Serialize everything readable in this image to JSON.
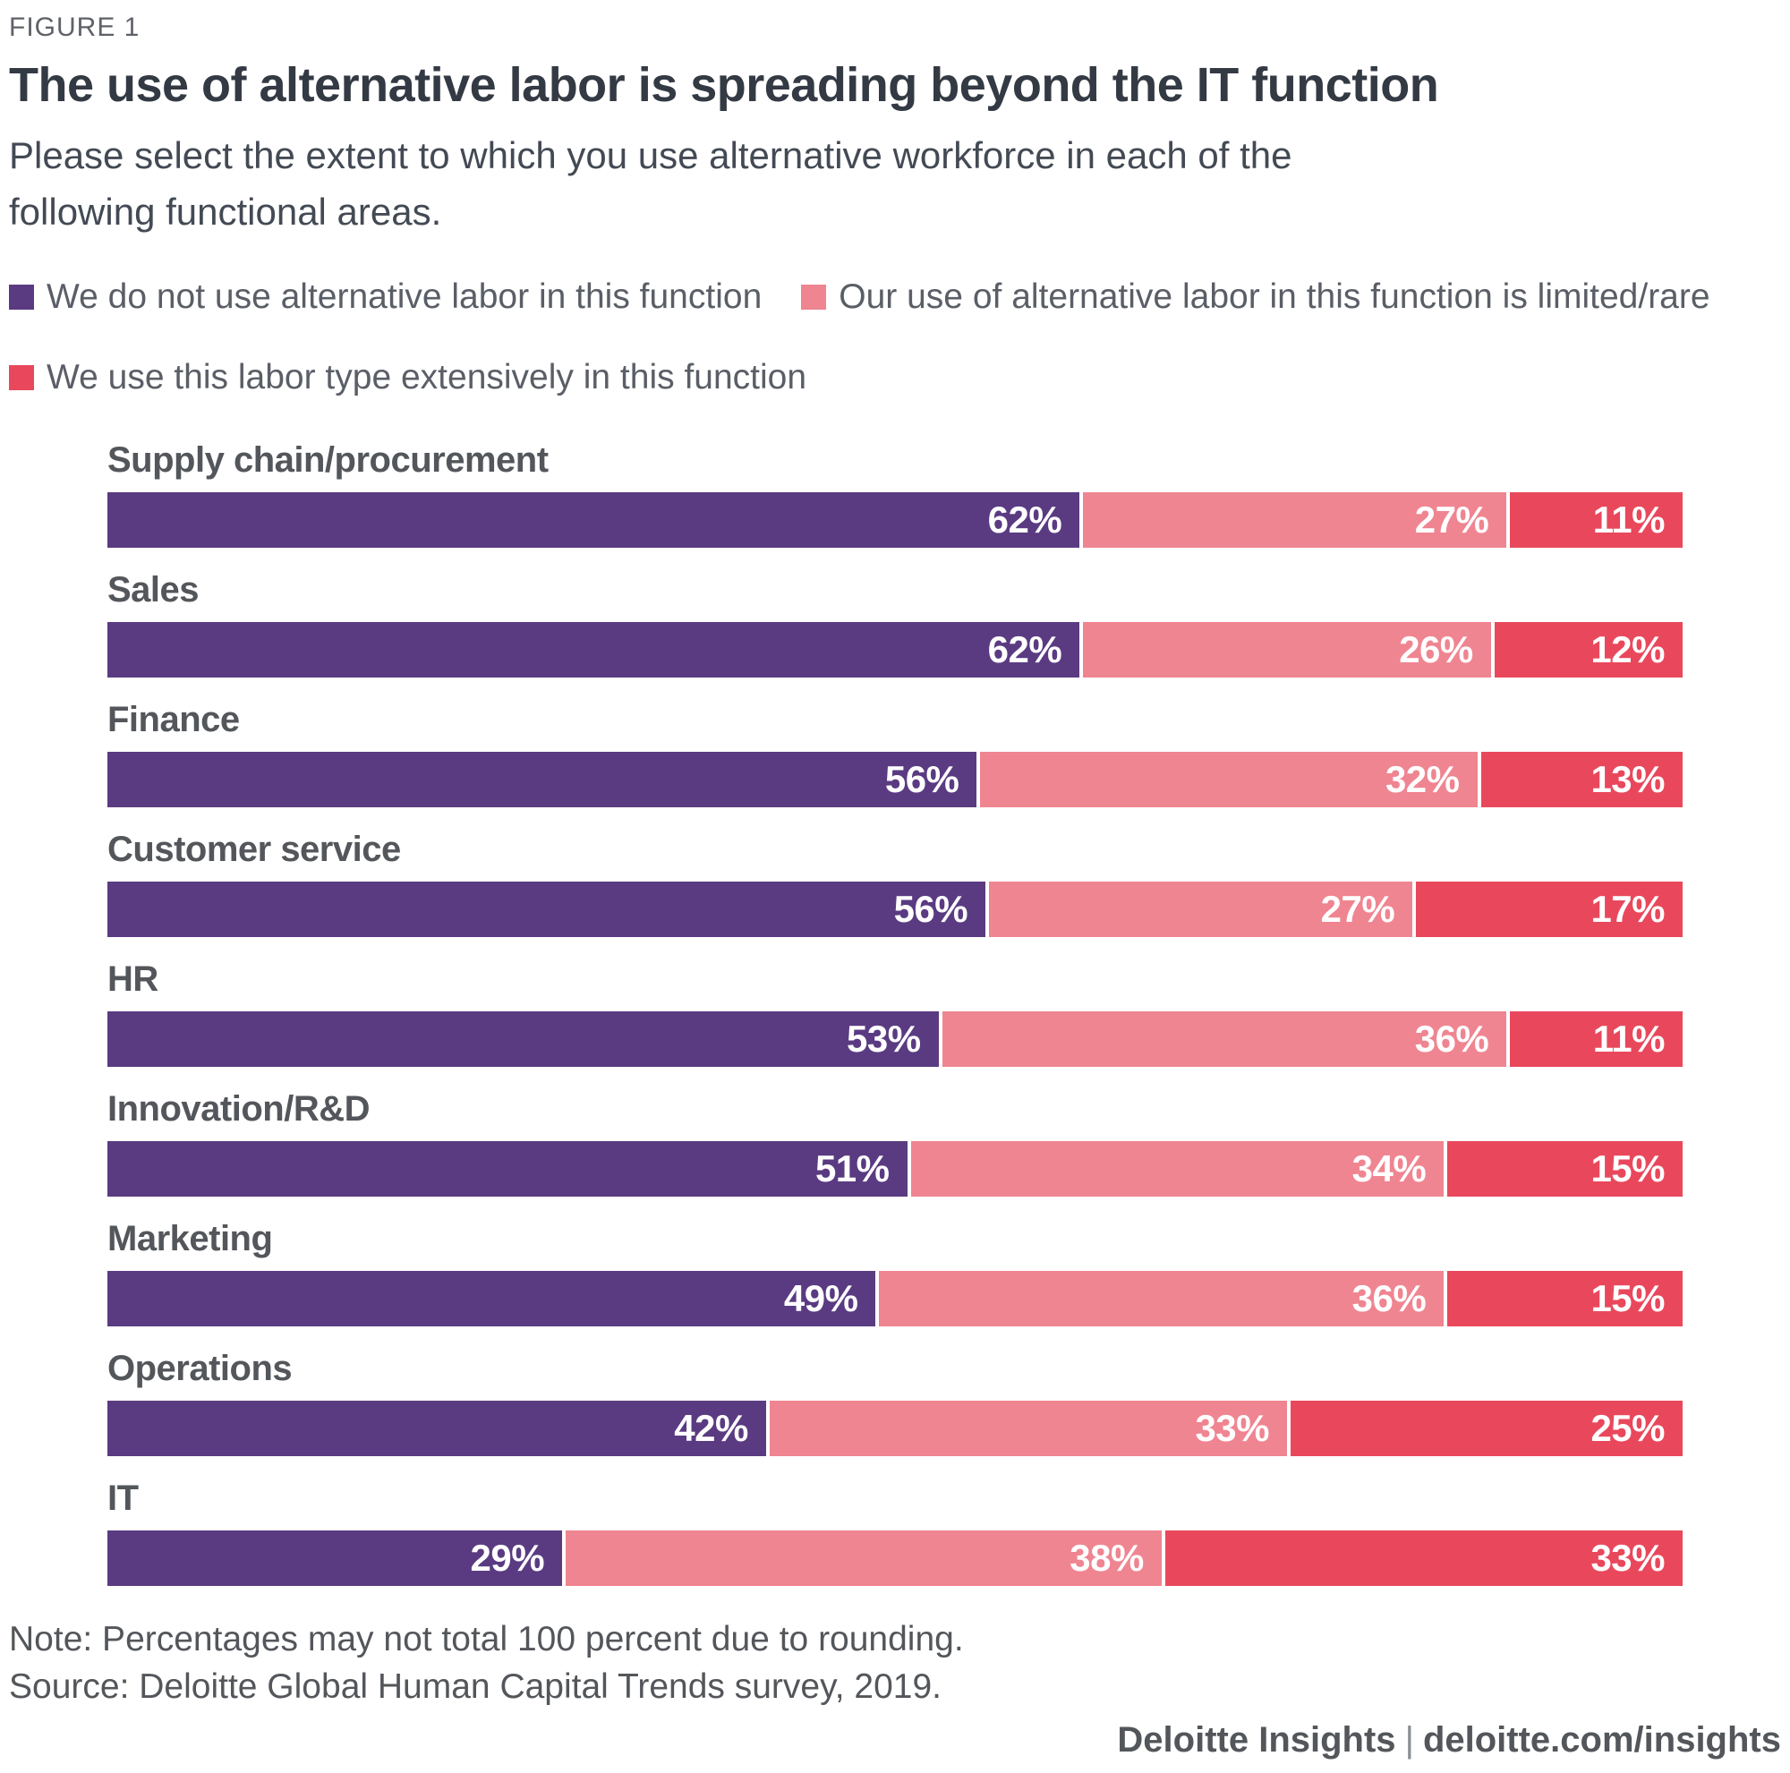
{
  "figure_label": "FIGURE 1",
  "title": "The use of alternative labor is spreading beyond the IT function",
  "subtitle": "Please select the extent to which you use alternative workforce in each of the following functional areas.",
  "colors": {
    "no_use": "#5A3B82",
    "limited": "#EF8591",
    "extensive": "#E9485C"
  },
  "legend": [
    {
      "label": "We do not use alternative labor in this function",
      "color": "#5A3B82"
    },
    {
      "label": "Our use of alternative labor in this function is limited/rare",
      "color": "#EF8591"
    },
    {
      "label": "We use this labor type extensively in this function",
      "color": "#E9485C"
    }
  ],
  "chart_data": {
    "type": "bar",
    "orientation": "horizontal",
    "stacked": true,
    "unit": "%",
    "categories": [
      "Supply chain/procurement",
      "Sales",
      "Finance",
      "Customer service",
      "HR",
      "Innovation/R&D",
      "Marketing",
      "Operations",
      "IT"
    ],
    "series": [
      {
        "name": "We do not use alternative labor in this function",
        "color": "#5A3B82",
        "values": [
          62,
          62,
          56,
          56,
          53,
          51,
          49,
          42,
          29
        ]
      },
      {
        "name": "Our use of alternative labor in this function is limited/rare",
        "color": "#EF8591",
        "values": [
          27,
          26,
          32,
          27,
          36,
          34,
          36,
          33,
          38
        ]
      },
      {
        "name": "We use this labor type extensively in this function",
        "color": "#E9485C",
        "values": [
          11,
          12,
          13,
          17,
          11,
          15,
          15,
          25,
          33
        ]
      }
    ],
    "xlim": [
      0,
      100
    ],
    "grid": false,
    "legend_position": "top",
    "value_labels": "inside-right"
  },
  "note": "Note: Percentages may not total 100 percent due to rounding.",
  "source": "Source: Deloitte Global Human Capital Trends survey, 2019.",
  "footer": {
    "brand": "Deloitte Insights",
    "separator": "|",
    "url": "deloitte.com/insights"
  }
}
